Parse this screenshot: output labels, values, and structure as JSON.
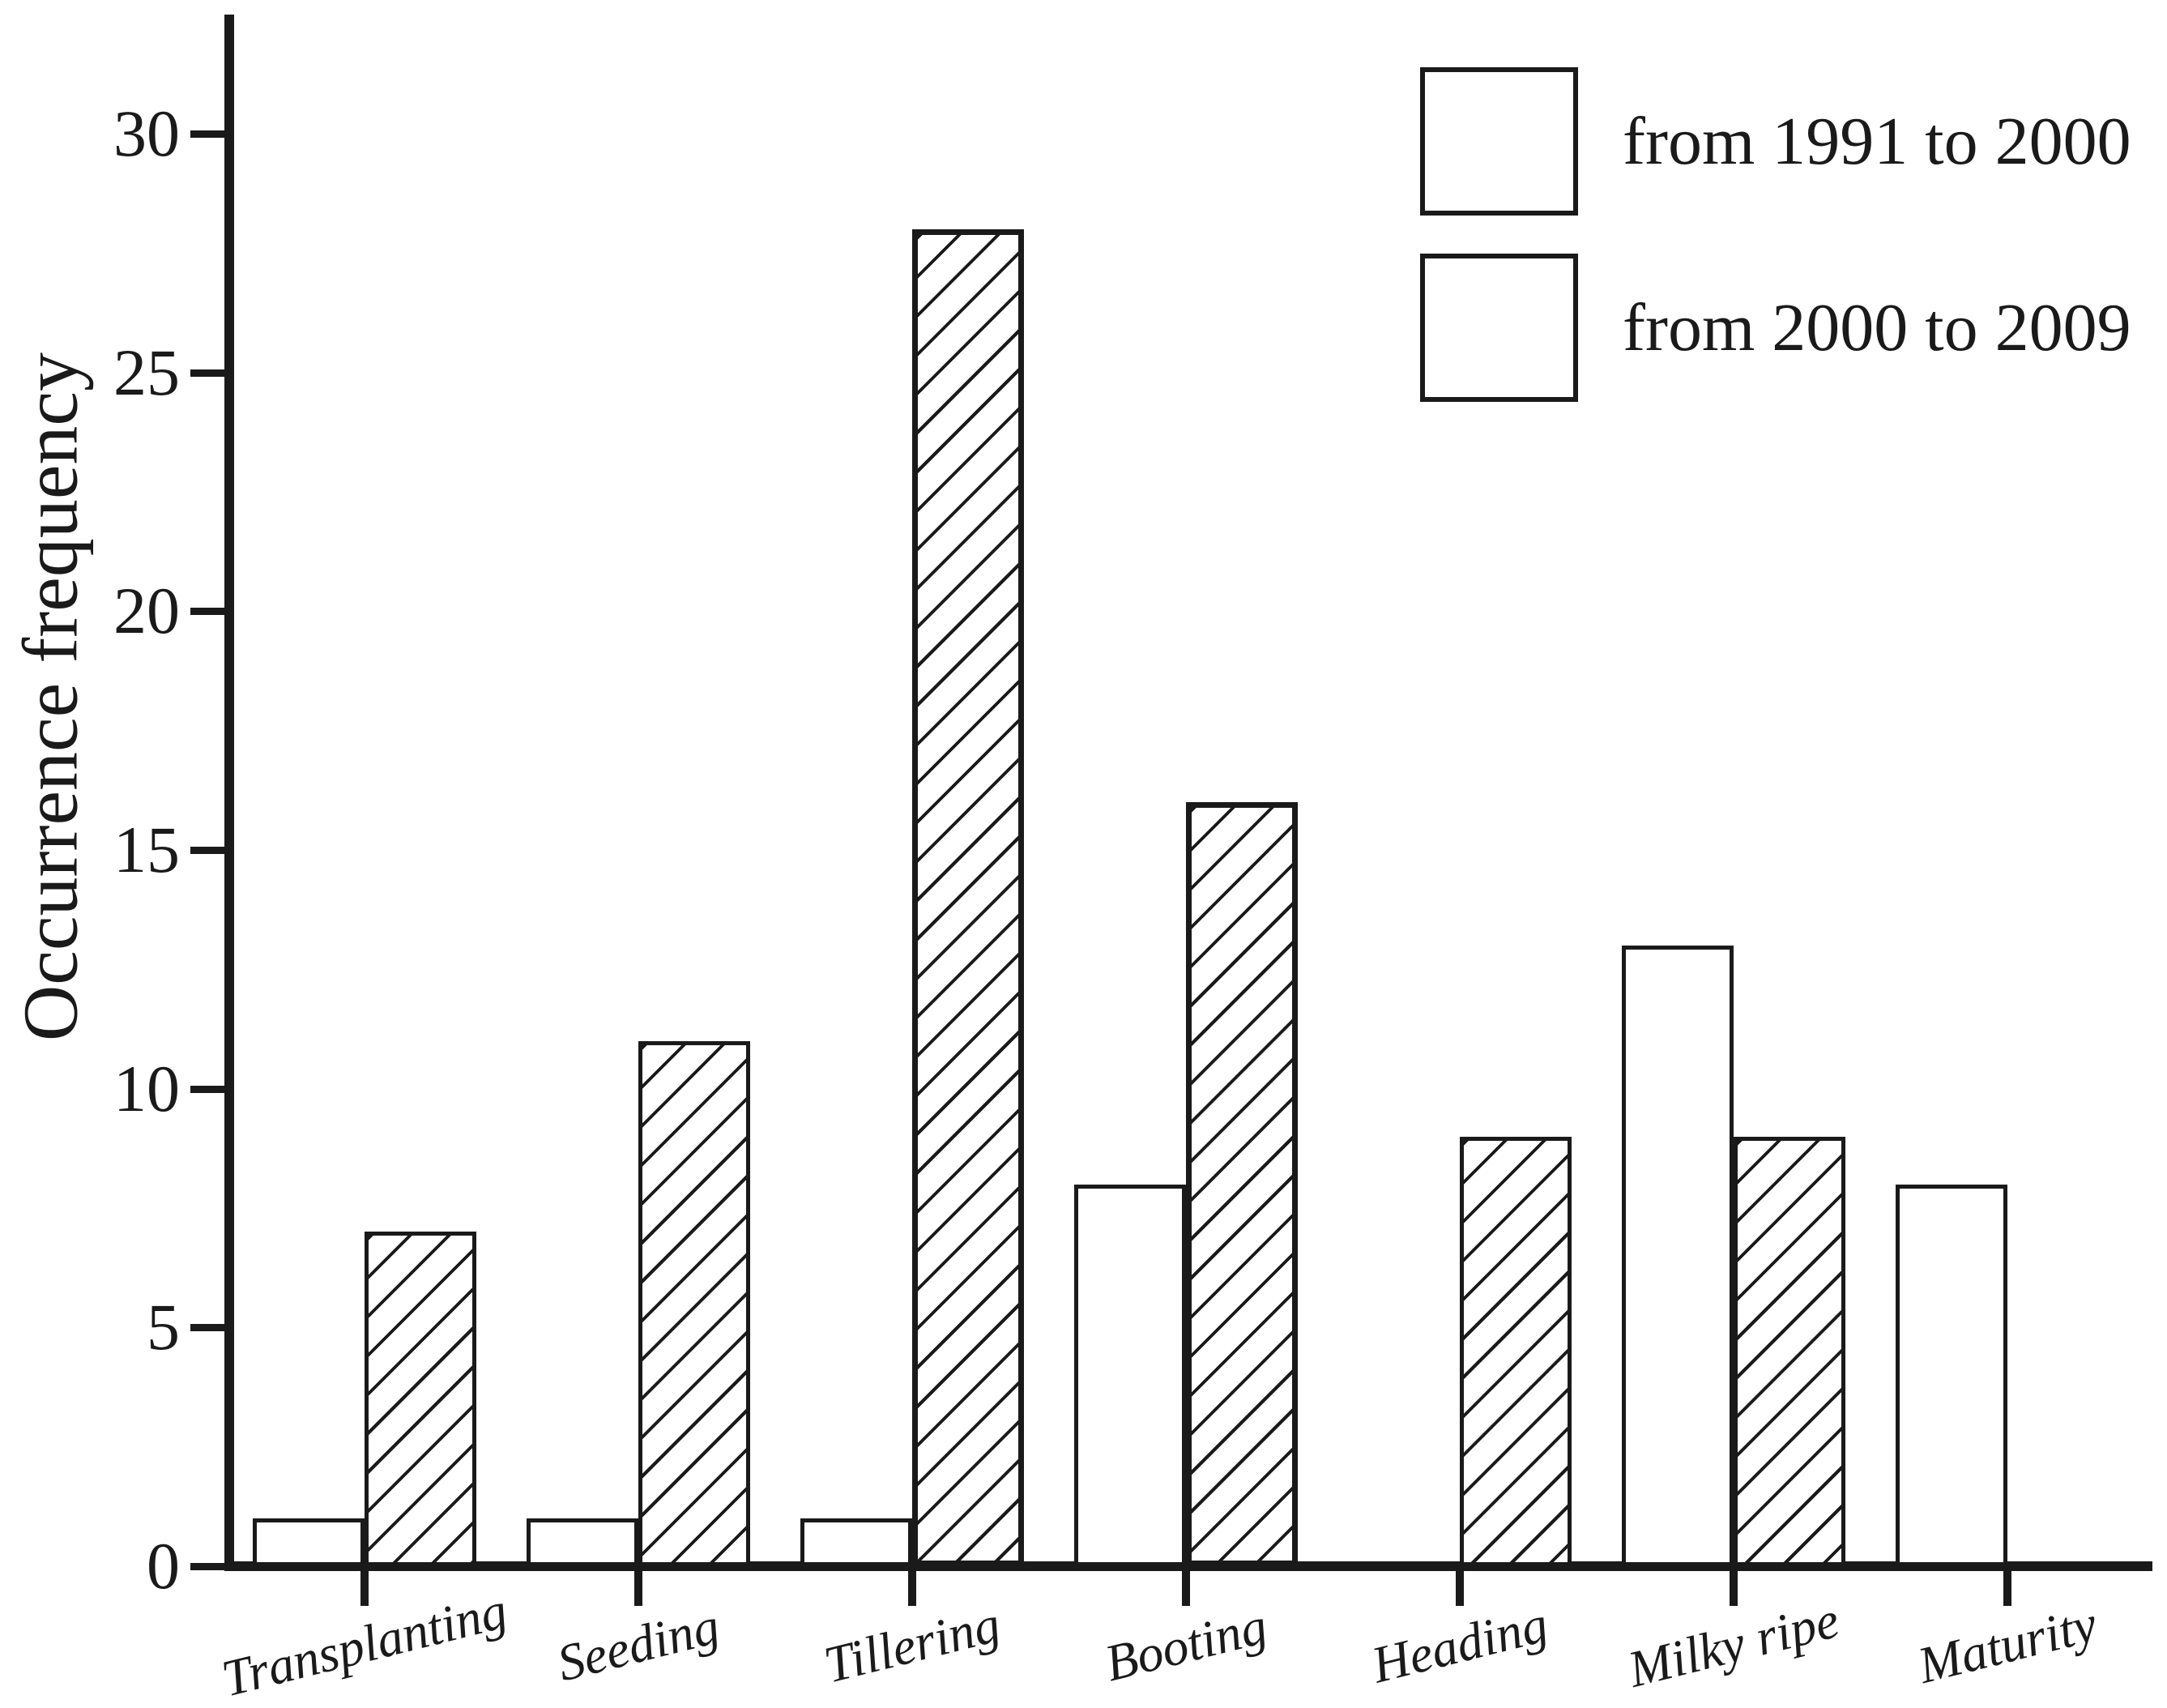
{
  "figure": {
    "ylabel": "Occurrence frequency",
    "background_color": "#ffffff",
    "ink_color": "#1a1a1a"
  },
  "legend": {
    "position": "upper right",
    "entries": [
      {
        "label": "from 1991 to 2000",
        "pattern": "plain"
      },
      {
        "label": "from 2000 to 2009",
        "pattern": "hatched-diagonal"
      }
    ]
  },
  "chart_data": {
    "type": "bar",
    "title": "",
    "xlabel": "",
    "ylabel": "Occurrence frequency",
    "categories": [
      "Transplanting",
      "Seeding",
      "Tillering",
      "Booting",
      "Heading",
      "Milky ripe",
      "Maturity"
    ],
    "series": [
      {
        "name": "from 1991 to 2000",
        "pattern": "plain",
        "values": [
          1,
          1,
          1,
          8,
          0,
          13,
          8
        ]
      },
      {
        "name": "from 2000 to 2009",
        "pattern": "hatched-diagonal",
        "values": [
          7,
          11,
          28,
          16,
          9,
          9,
          0
        ]
      }
    ],
    "yticks": [
      0,
      5,
      10,
      15,
      20,
      25,
      30
    ],
    "ylim": [
      0,
      32.5
    ],
    "grid": false,
    "bar_fill": "#ffffff",
    "bar_edge": "#1a1a1a",
    "legend_position": "upper right"
  }
}
